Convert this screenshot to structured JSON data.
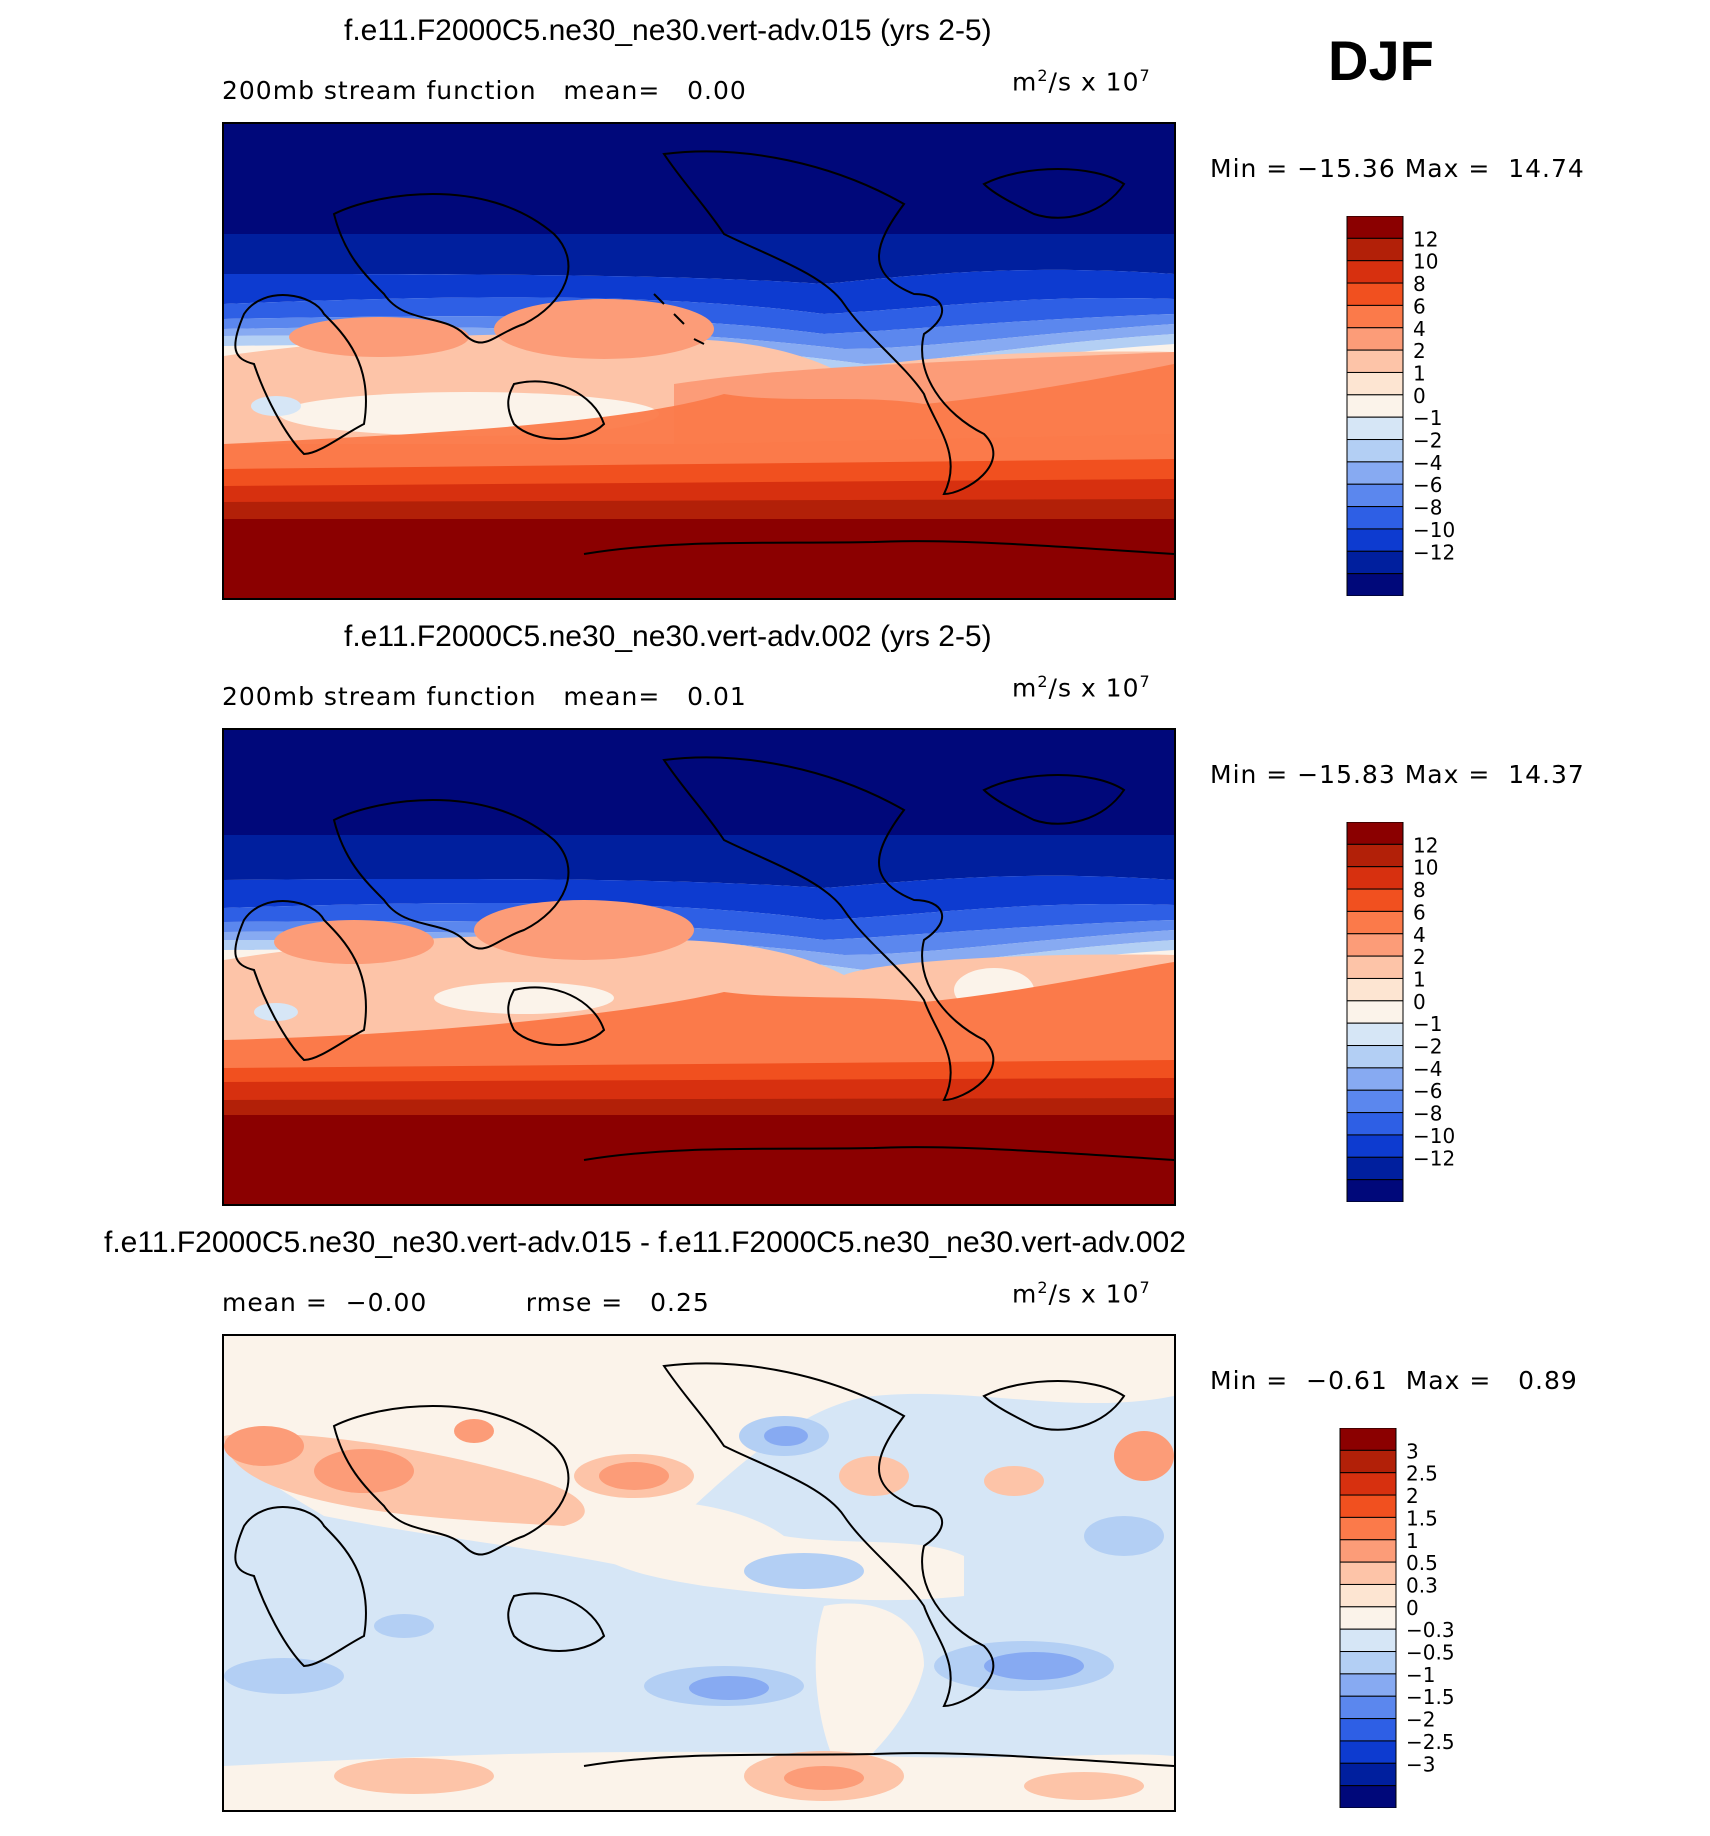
{
  "season": "DJF",
  "colorbars": {
    "main": {
      "labels": [
        "12",
        "10",
        "8",
        "6",
        "4",
        "2",
        "1",
        "0",
        "−1",
        "−2",
        "−4",
        "−6",
        "−8",
        "−10",
        "−12"
      ],
      "colors": [
        "#8b0000",
        "#b22008",
        "#d7300f",
        "#f1501f",
        "#fb7a4a",
        "#fc9c78",
        "#fdc4a8",
        "#fde5d2",
        "#fbf3ea",
        "#d6e6f6",
        "#b3cff4",
        "#87aaf2",
        "#5b87ee",
        "#2e5fe5",
        "#0d3bd0",
        "#001f9e",
        "#00087a"
      ]
    },
    "diff": {
      "labels": [
        "3",
        "2.5",
        "2",
        "1.5",
        "1",
        "0.5",
        "0.3",
        "0",
        "−0.3",
        "−0.5",
        "−1",
        "−1.5",
        "−2",
        "−2.5",
        "−3"
      ],
      "colors": [
        "#8b0000",
        "#b22008",
        "#d7300f",
        "#f1501f",
        "#fb7a4a",
        "#fc9c78",
        "#fdc4a8",
        "#fde5d2",
        "#fbf3ea",
        "#d6e6f6",
        "#b3cff4",
        "#87aaf2",
        "#5b87ee",
        "#2e5fe5",
        "#0d3bd0",
        "#001f9e",
        "#00087a"
      ]
    }
  },
  "panels": [
    {
      "title": "f.e11.F2000C5.ne30_ne30.vert-adv.015 (yrs 2-5)",
      "subtitle_left": "200mb stream function",
      "mean_label": "mean=",
      "mean_value": "0.00",
      "units_base": "m",
      "units_sup": "2",
      "units_mid": "/s x 10",
      "units_sup2": "7",
      "min_label": "Min =",
      "min_value": "−15.36",
      "max_label": "Max =",
      "max_value": "14.74"
    },
    {
      "title": "f.e11.F2000C5.ne30_ne30.vert-adv.002 (yrs 2-5)",
      "subtitle_left": "200mb stream function",
      "mean_label": "mean=",
      "mean_value": "0.01",
      "units_base": "m",
      "units_sup": "2",
      "units_mid": "/s x 10",
      "units_sup2": "7",
      "min_label": "Min =",
      "min_value": "−15.83",
      "max_label": "Max =",
      "max_value": "14.37"
    },
    {
      "title": "f.e11.F2000C5.ne30_ne30.vert-adv.015 - f.e11.F2000C5.ne30_ne30.vert-adv.002",
      "mean_label": "mean =",
      "mean_value": "−0.00",
      "rmse_label": "rmse =",
      "rmse_value": "0.25",
      "units_base": "m",
      "units_sup": "2",
      "units_mid": "/s x 10",
      "units_sup2": "7",
      "min_label": "Min =",
      "min_value": "−0.61",
      "max_label": "Max =",
      "max_value": "0.89"
    }
  ],
  "chart_data": [
    {
      "type": "heatmap",
      "title": "f.e11.F2000C5.ne30_ne30.vert-adv.015 (yrs 2-5)",
      "variable": "200mb stream function",
      "units": "m2/s x 10^7",
      "mean": 0.0,
      "min": -15.36,
      "max": 14.74,
      "contour_levels": [
        -12,
        -10,
        -8,
        -6,
        -4,
        -2,
        -1,
        0,
        1,
        2,
        4,
        6,
        8,
        10,
        12
      ]
    },
    {
      "type": "heatmap",
      "title": "f.e11.F2000C5.ne30_ne30.vert-adv.002 (yrs 2-5)",
      "variable": "200mb stream function",
      "units": "m2/s x 10^7",
      "mean": 0.01,
      "min": -15.83,
      "max": 14.37,
      "contour_levels": [
        -12,
        -10,
        -8,
        -6,
        -4,
        -2,
        -1,
        0,
        1,
        2,
        4,
        6,
        8,
        10,
        12
      ]
    },
    {
      "type": "heatmap",
      "title": "f.e11.F2000C5.ne30_ne30.vert-adv.015 - f.e11.F2000C5.ne30_ne30.vert-adv.002",
      "units": "m2/s x 10^7",
      "mean": -0.0,
      "rmse": 0.25,
      "min": -0.61,
      "max": 0.89,
      "contour_levels": [
        -3,
        -2.5,
        -2,
        -1.5,
        -1,
        -0.5,
        -0.3,
        0,
        0.3,
        0.5,
        1,
        1.5,
        2,
        2.5,
        3
      ]
    }
  ]
}
